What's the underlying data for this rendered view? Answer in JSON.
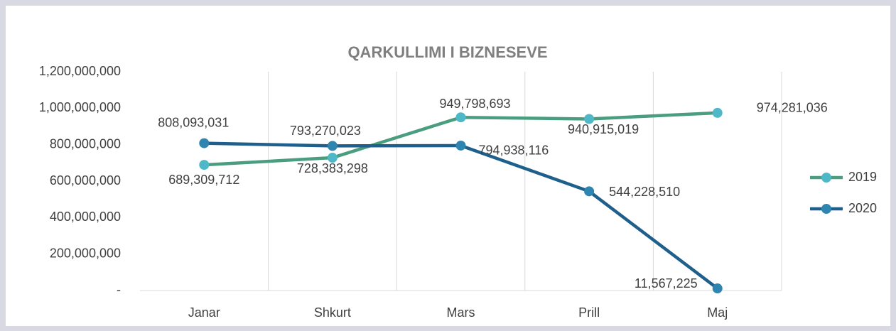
{
  "chart_data": {
    "type": "line",
    "title": "QARKULLIMI I BIZNESEVE",
    "categories": [
      "Janar",
      "Shkurt",
      "Mars",
      "Prill",
      "Maj"
    ],
    "series": [
      {
        "name": "2019",
        "color": "#4a9e7f",
        "marker_color": "#4fb8c8",
        "values": [
          689309712,
          728383298,
          949798693,
          940915019,
          974281036
        ],
        "value_labels": [
          "689,309,712",
          "728,383,298",
          "949,798,693",
          "940,915,019",
          "974,281,036"
        ]
      },
      {
        "name": "2020",
        "color": "#1f5f8b",
        "marker_color": "#2e86b0",
        "values": [
          808093031,
          793270023,
          794938116,
          544228510,
          11567225
        ],
        "value_labels": [
          "808,093,031",
          "793,270,023",
          "794,938,116",
          "544,228,510",
          "11,567,225"
        ]
      }
    ],
    "ylim": [
      0,
      1200000000
    ],
    "yticks": [
      {
        "value": 0,
        "label": "-"
      },
      {
        "value": 200000000,
        "label": "200,000,000"
      },
      {
        "value": 400000000,
        "label": "400,000,000"
      },
      {
        "value": 600000000,
        "label": "600,000,000"
      },
      {
        "value": 800000000,
        "label": "800,000,000"
      },
      {
        "value": 1000000000,
        "label": "1,000,000,000"
      },
      {
        "value": 1200000000,
        "label": "1,200,000,000"
      }
    ],
    "legend": "right",
    "grid": "vertical"
  }
}
